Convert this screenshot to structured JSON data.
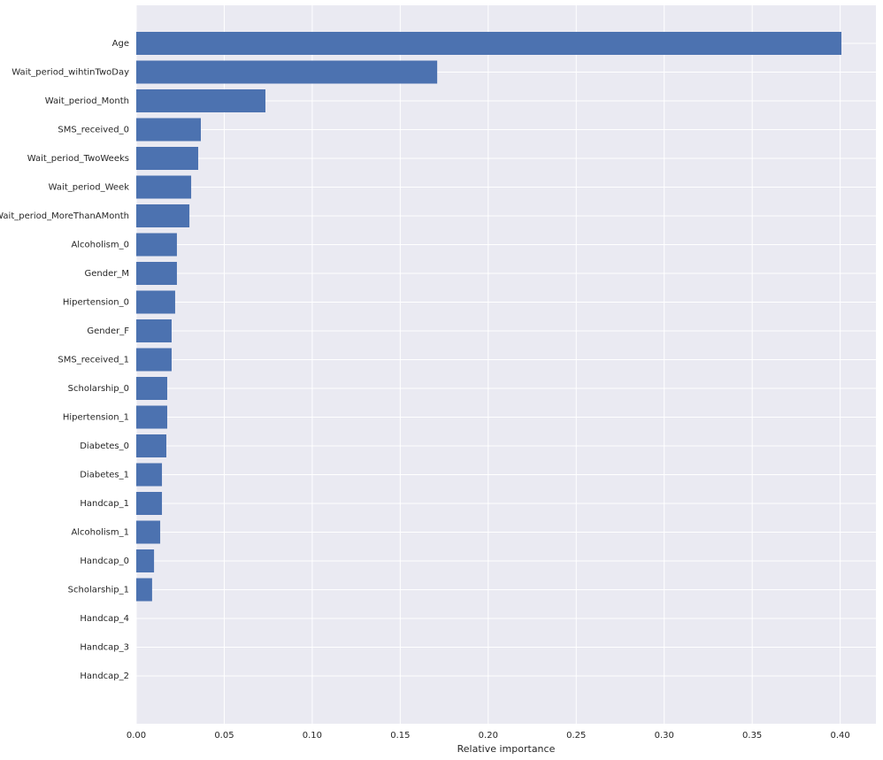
{
  "chart_data": {
    "type": "barh",
    "xlabel": "Relative importance",
    "categories": [
      "Age",
      "Wait_period_wihtinTwoDay",
      "Wait_period_Month",
      "SMS_received_0",
      "Wait_period_TwoWeeks",
      "Wait_period_Week",
      "Wait_period_MoreThanAMonth",
      "Alcoholism_0",
      "Gender_M",
      "Hipertension_0",
      "Gender_F",
      "SMS_received_1",
      "Scholarship_0",
      "Hipertension_1",
      "Diabetes_0",
      "Diabetes_1",
      "Handcap_1",
      "Alcoholism_1",
      "Handcap_0",
      "Scholarship_1",
      "Handcap_4",
      "Handcap_3",
      "Handcap_2"
    ],
    "values": [
      0.4007,
      0.171,
      0.0734,
      0.0367,
      0.0352,
      0.0312,
      0.0302,
      0.0231,
      0.0231,
      0.0221,
      0.0201,
      0.0201,
      0.0176,
      0.0176,
      0.0171,
      0.0146,
      0.0146,
      0.0136,
      0.0101,
      0.009,
      0,
      0,
      0
    ],
    "color": "#4c72b0",
    "xlim": [
      0,
      0.4203
    ],
    "xticks": [
      {
        "value": 0,
        "label": "0.00"
      },
      0.05,
      {
        "value": 0.1,
        "label": "0.10"
      },
      0.15,
      {
        "value": 0.2,
        "label": "0.20"
      },
      0.25,
      {
        "value": 0.3,
        "label": "0.30"
      },
      0.35,
      {
        "value": 0.4,
        "label": "0.40"
      }
    ],
    "grid": true
  }
}
